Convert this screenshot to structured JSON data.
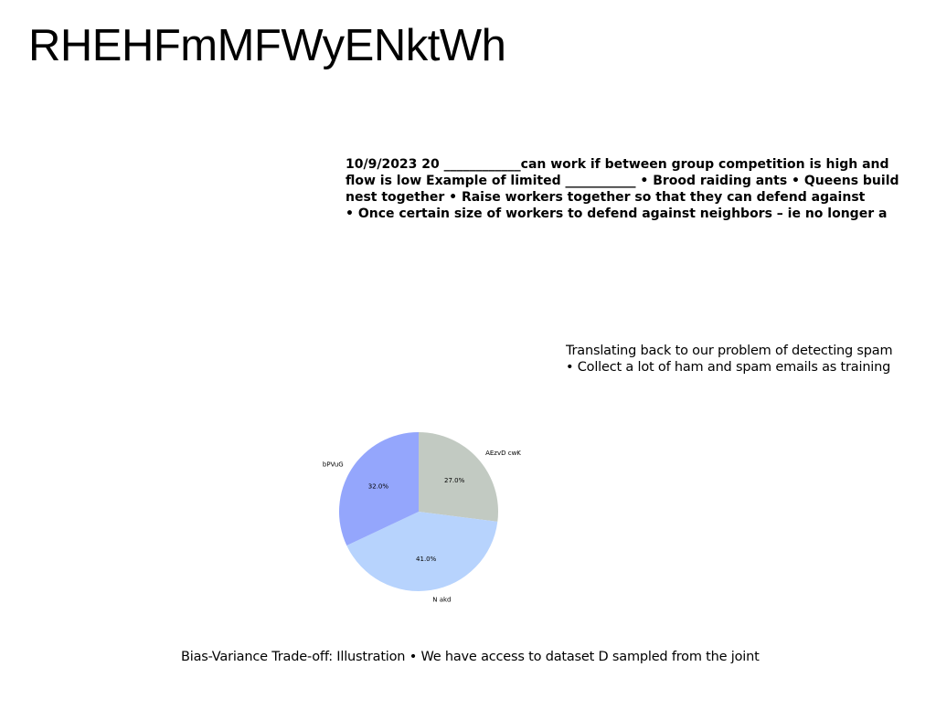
{
  "title": "RHEHFmMFWyENktWh",
  "bold_block": {
    "lines": [
      "10/9/2023 20 ____________can work if between group competition is high and",
      "flow is low Example of limited ___________ • Brood raiding ants • Queens build",
      "nest together • Raise workers together so that they can defend against",
      "• Once certain size of workers to defend against neighbors – ie no longer a"
    ]
  },
  "light_block": {
    "lines": [
      "Translating back to our problem of detecting spam",
      "• Collect a lot of ham and spam emails as training"
    ]
  },
  "bottom_line": "Bias-Variance Trade-off: Illustration • We have access to dataset D sampled from the joint",
  "chart_data": {
    "type": "pie",
    "start_angle_deg": 90,
    "direction": "clockwise",
    "slices": [
      {
        "label": "AEzvD cwK",
        "value": 27.0,
        "pct_label": "27.0%",
        "color": "#c2cac2"
      },
      {
        "label": "N akd",
        "value": 41.0,
        "pct_label": "41.0%",
        "color": "#b7d3fd"
      },
      {
        "label": "bPVuG",
        "value": 32.0,
        "pct_label": "32.0%",
        "color": "#94a6fc"
      }
    ]
  }
}
